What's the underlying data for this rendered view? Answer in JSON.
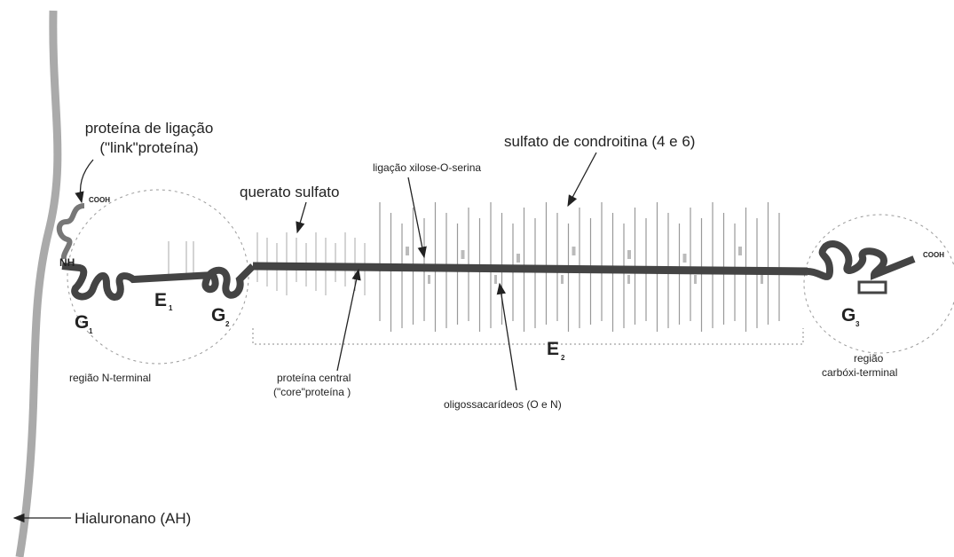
{
  "labels": {
    "link_protein": [
      "proteína de ligação",
      "(\"link\"proteína)"
    ],
    "cooh_left": "COOH",
    "nh": "NH",
    "keratan": "querato sulfato",
    "xylose_link": "ligação xilose-O-serina",
    "chondroitin": "sulfato de condroitina (4 e 6)",
    "n_terminal": "região N-terminal",
    "core_protein": [
      "proteína central",
      "(\"core\"proteína )"
    ],
    "oligo": "oligossacarídeos (O e N)",
    "c_terminal": [
      "região",
      "carbóxi-terminal"
    ],
    "cooh_right": "COOH",
    "hyaluronan": "Hialuronano (AH)"
  },
  "domains": [
    {
      "label": "G",
      "sub": "1"
    },
    {
      "label": "E",
      "sub": "1"
    },
    {
      "label": "G",
      "sub": "2"
    },
    {
      "label": "E",
      "sub": "2"
    },
    {
      "label": "G",
      "sub": "3"
    }
  ]
}
